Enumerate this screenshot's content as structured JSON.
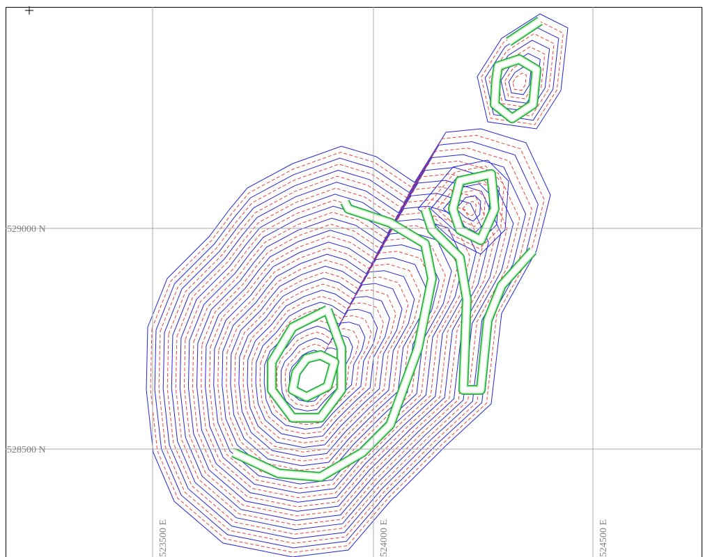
{
  "northing_labels": [
    "529000 N",
    "528500 N"
  ],
  "easting_labels": [
    "523500 E",
    "524000 E",
    "524500 E"
  ]
}
